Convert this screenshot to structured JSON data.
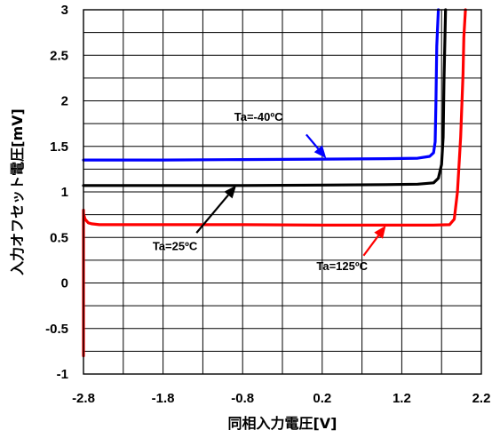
{
  "chart_data": {
    "type": "line",
    "title": "",
    "xlabel": "同相入力電圧[V]",
    "ylabel": "入力オフセット電圧[mV]",
    "xlim": [
      -2.8,
      2.2
    ],
    "ylim": [
      -1,
      3
    ],
    "x_ticks": [
      "-2.8",
      "-1.8",
      "-0.8",
      "0.2",
      "1.2",
      "2.2"
    ],
    "y_ticks": [
      "3",
      "2.5",
      "2",
      "1.5",
      "1",
      "0.5",
      "0",
      "-0.5",
      "-1"
    ],
    "grid": true,
    "series": [
      {
        "name": "Ta=-40ºC",
        "color": "#0000ff",
        "x": [
          -2.8,
          -1.8,
          -0.8,
          0.2,
          1.0,
          1.4,
          1.55,
          1.6,
          1.62,
          1.63,
          1.64,
          1.66
        ],
        "y": [
          1.35,
          1.35,
          1.355,
          1.36,
          1.365,
          1.37,
          1.39,
          1.43,
          1.55,
          2.0,
          2.6,
          3.0
        ]
      },
      {
        "name": "Ta=25ºC",
        "color": "#000000",
        "x": [
          -2.8,
          -1.8,
          -0.8,
          0.2,
          1.0,
          1.4,
          1.6,
          1.66,
          1.7,
          1.72,
          1.73,
          1.75
        ],
        "y": [
          1.07,
          1.07,
          1.07,
          1.075,
          1.08,
          1.085,
          1.1,
          1.15,
          1.3,
          1.6,
          2.2,
          3.0
        ]
      },
      {
        "name": "Ta=125ºC",
        "color": "#ff0000",
        "x": [
          -2.88,
          -2.87,
          -2.86,
          -2.85,
          -2.84,
          -2.83,
          -2.82,
          -2.81,
          -2.8,
          -2.78,
          -2.74,
          -2.7,
          -2.6,
          -1.8,
          -0.8,
          0.2,
          1.2,
          1.6,
          1.8,
          1.86,
          1.9,
          1.94,
          1.97,
          1.98,
          2.0
        ],
        "y": [
          -0.8,
          -0.3,
          0.2,
          0.5,
          0.7,
          0.78,
          0.8,
          0.79,
          0.76,
          0.7,
          0.66,
          0.65,
          0.64,
          0.64,
          0.64,
          0.635,
          0.635,
          0.635,
          0.64,
          0.7,
          1.0,
          1.6,
          2.3,
          2.7,
          3.0
        ]
      }
    ],
    "annotations": [
      {
        "text": "Ta=-40ºC",
        "series": 0,
        "label_x": -0.6,
        "label_y": 1.78,
        "arrow_from": [
          0.0,
          1.63
        ],
        "arrow_to": [
          0.25,
          1.37
        ]
      },
      {
        "text": "Ta=25ºC",
        "series": 1,
        "label_x": -1.65,
        "label_y": 0.36,
        "arrow_from": [
          -1.38,
          0.55
        ],
        "arrow_to": [
          -0.88,
          1.07
        ]
      },
      {
        "text": "Ta=125ºC",
        "series": 2,
        "label_x": 0.45,
        "label_y": 0.14,
        "arrow_from": [
          0.72,
          0.3
        ],
        "arrow_to": [
          1.0,
          0.63
        ]
      }
    ]
  }
}
